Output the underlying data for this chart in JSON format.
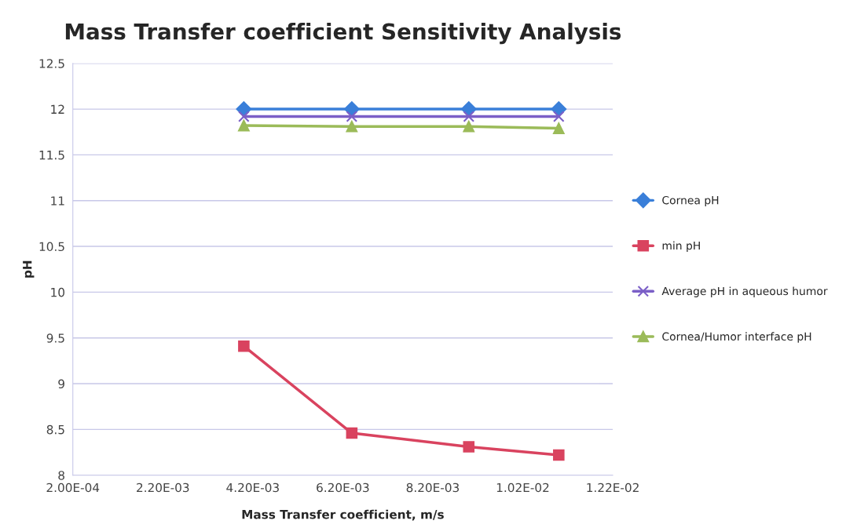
{
  "chart_data": {
    "type": "line",
    "title": "Mass Transfer coefficient Sensitivity Analysis",
    "xlabel": "Mass Transfer coefficient, m/s",
    "ylabel": "pH",
    "x": [
      0.004,
      0.0064,
      0.009,
      0.011
    ],
    "series": [
      {
        "name": "Cornea pH",
        "color": "#3a7fd9",
        "marker": "diamond",
        "values": [
          12.0,
          12.0,
          12.0,
          12.0
        ]
      },
      {
        "name": "min pH",
        "color": "#d9435f",
        "marker": "square",
        "values": [
          9.41,
          8.46,
          8.31,
          8.22
        ]
      },
      {
        "name": "Average pH in aqueous humor",
        "color": "#7b5fc7",
        "marker": "cross",
        "values": [
          11.92,
          11.92,
          11.92,
          11.92
        ]
      },
      {
        "name": "Cornea/Humor interface pH",
        "color": "#9bbb59",
        "marker": "triangle",
        "values": [
          11.82,
          11.81,
          11.81,
          11.79
        ]
      }
    ],
    "xlim": [
      0.0002,
      0.0122
    ],
    "xticks": [
      {
        "value": 0.0002,
        "label": "2.00E-04"
      },
      {
        "value": 0.0022,
        "label": "2.20E-03"
      },
      {
        "value": 0.0042,
        "label": "4.20E-03"
      },
      {
        "value": 0.0062,
        "label": "6.20E-03"
      },
      {
        "value": 0.0082,
        "label": "8.20E-03"
      },
      {
        "value": 0.0102,
        "label": "1.02E-02"
      },
      {
        "value": 0.0122,
        "label": "1.22E-02"
      }
    ],
    "ylim": [
      8,
      12.5
    ],
    "yticks": [
      8,
      8.5,
      9,
      9.5,
      10,
      10.5,
      11,
      11.5,
      12,
      12.5
    ],
    "grid": "y",
    "legend": "right",
    "line_style": "solid"
  }
}
